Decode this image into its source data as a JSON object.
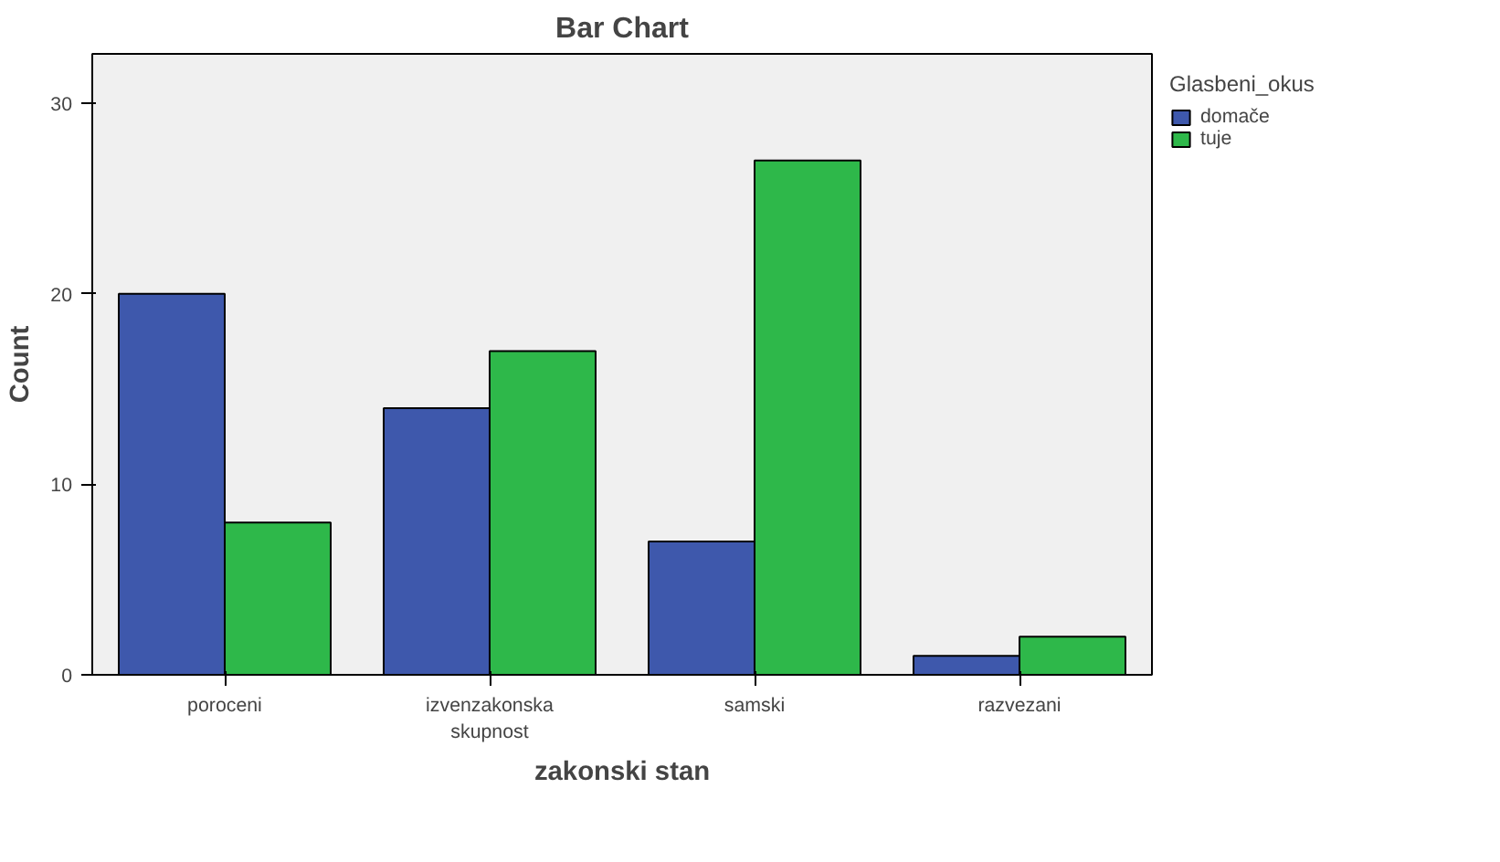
{
  "chart_data": {
    "type": "bar",
    "title": "Bar Chart",
    "xlabel": "zakonski stan",
    "ylabel": "Count",
    "legend_title": "Glasbeni_okus",
    "categories": [
      "poroceni",
      "izvenzakonska skupnost",
      "samski",
      "razvezani"
    ],
    "series": [
      {
        "name": "domače",
        "color": "#3e58ac",
        "values": [
          20,
          14,
          7,
          1
        ]
      },
      {
        "name": "tuje",
        "color": "#2eb84a",
        "values": [
          8,
          17,
          27,
          2
        ]
      }
    ],
    "ylim": [
      0,
      32.6
    ],
    "yticks": [
      0,
      10,
      20,
      30
    ],
    "grid": false,
    "legend": "top right"
  }
}
